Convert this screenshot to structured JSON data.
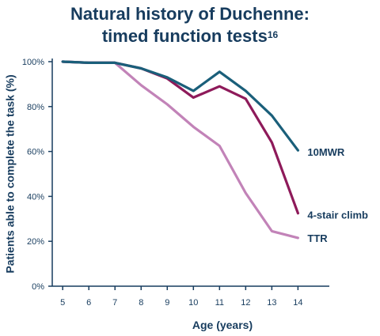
{
  "chart_data": {
    "type": "line",
    "title_line1": "Natural history of Duchenne:",
    "title_line2": "timed function tests",
    "title_superscript": "16",
    "xlabel": "Age (years)",
    "ylabel": "Patients able to complete the task (%)",
    "x": [
      5,
      6,
      7,
      8,
      9,
      10,
      11,
      12,
      13,
      14
    ],
    "xlim": [
      4.6,
      15.2
    ],
    "ylim": [
      0,
      100
    ],
    "y_ticks": [
      0,
      20,
      40,
      60,
      80,
      100
    ],
    "y_tick_labels": [
      "0%",
      "20%",
      "40%",
      "60%",
      "80%",
      "100%"
    ],
    "grid": false,
    "series": [
      {
        "name": "10MWR",
        "color": "#1a5f7a",
        "x": [
          5,
          6,
          7,
          8,
          9,
          10,
          11,
          12,
          13,
          14
        ],
        "values": [
          100,
          99.5,
          99.5,
          97,
          93,
          87,
          95.5,
          87,
          76,
          60.5
        ]
      },
      {
        "name": "4-stair climb",
        "color": "#8e1a5a",
        "x": [
          5,
          6,
          7,
          8,
          9,
          10,
          11,
          12,
          13,
          14
        ],
        "values": [
          100,
          99.5,
          99.5,
          97,
          92.5,
          84,
          89,
          83.5,
          64,
          32.5
        ]
      },
      {
        "name": "TTR",
        "color": "#c283b8",
        "x": [
          5,
          6,
          7,
          8,
          9,
          10,
          11,
          12,
          13,
          14
        ],
        "values": [
          100,
          99.5,
          99.5,
          89.5,
          81,
          71,
          62.5,
          41.5,
          24.5,
          21.5
        ]
      }
    ]
  }
}
